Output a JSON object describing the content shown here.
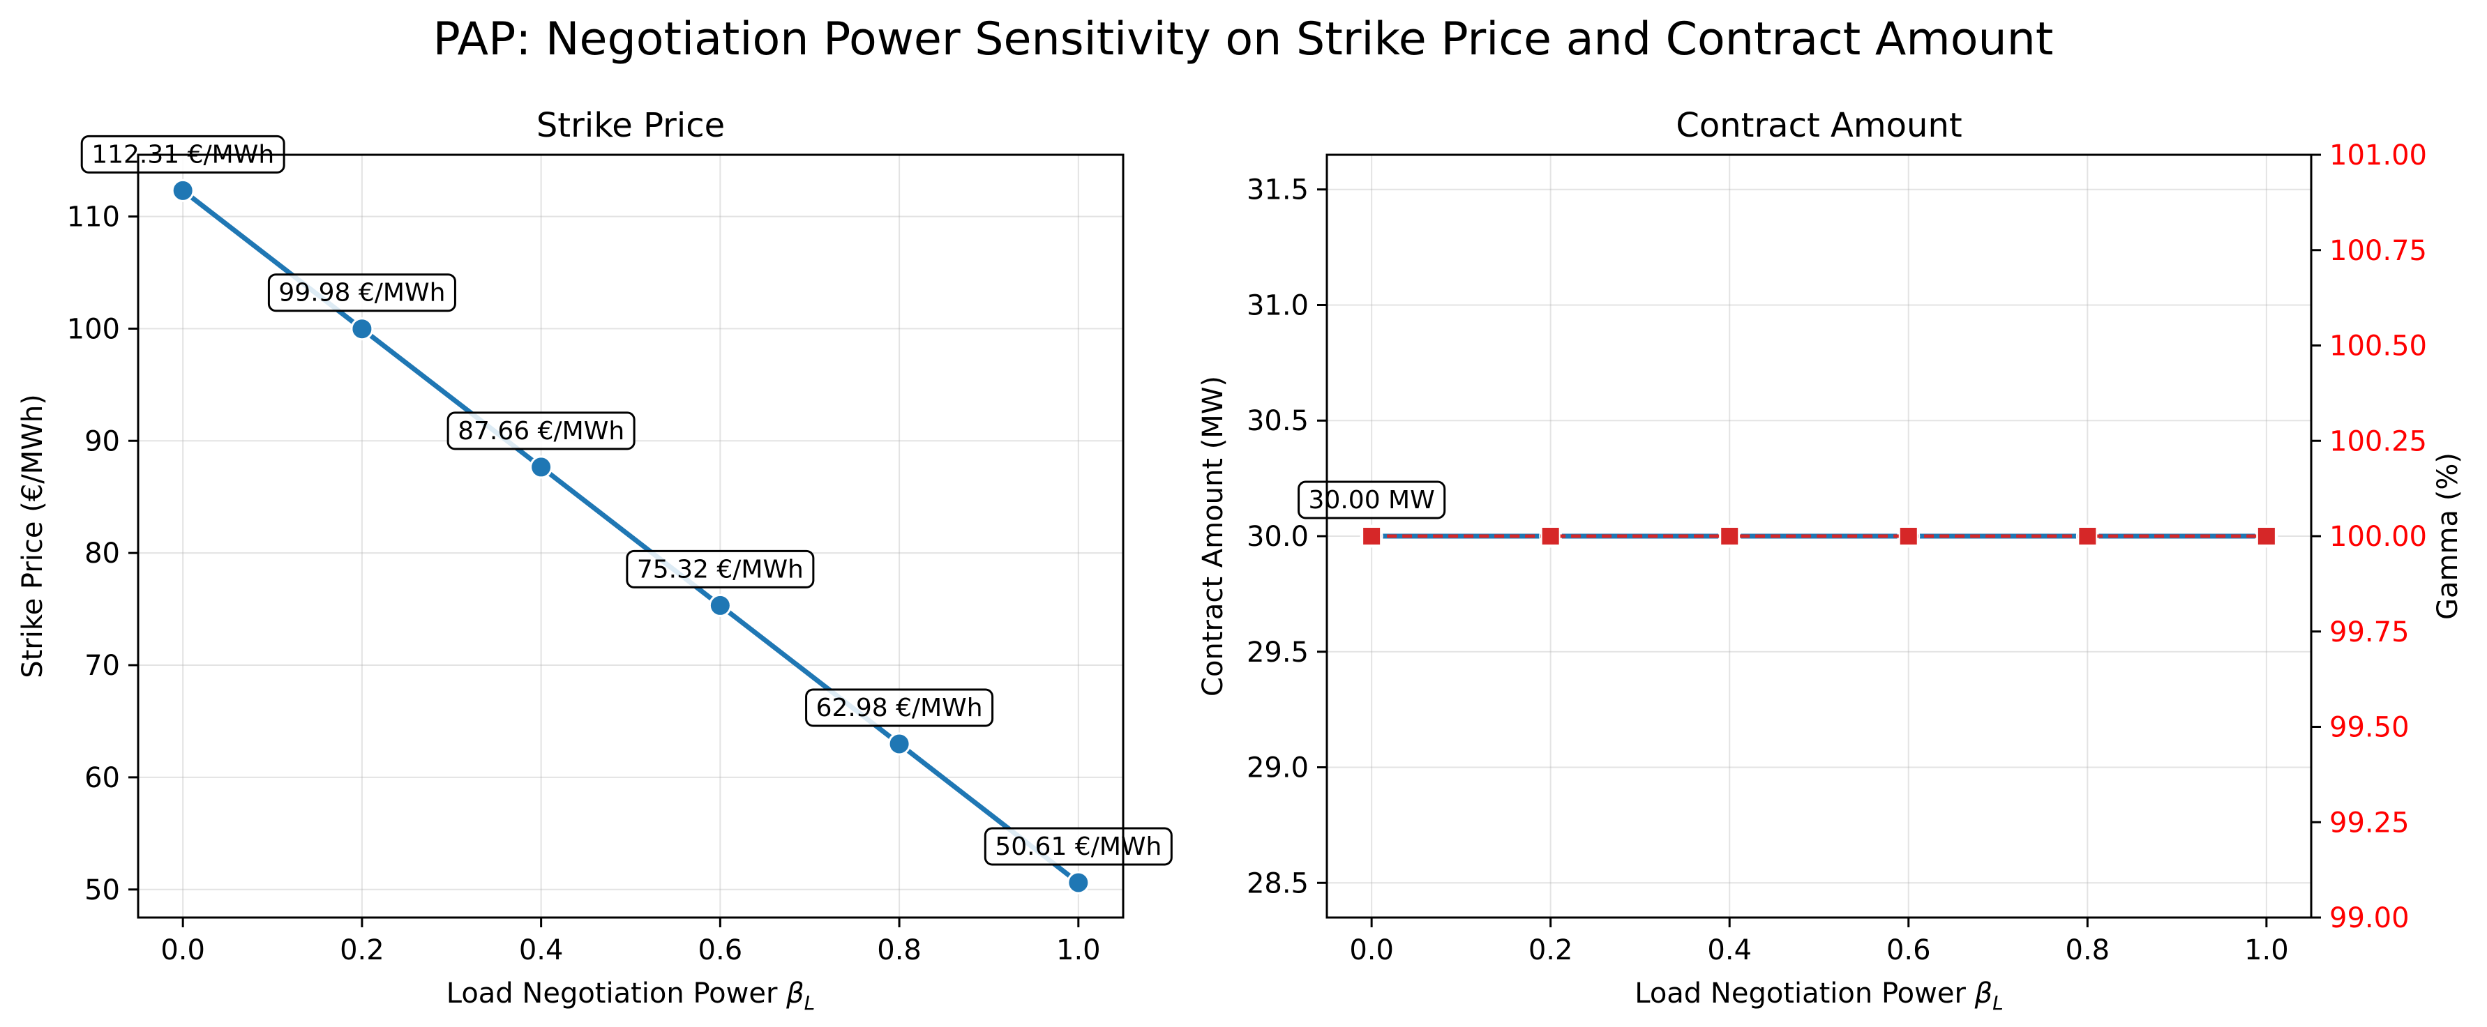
{
  "suptitle": "PAP: Negotiation Power Sensitivity on Strike Price and Contract Amount",
  "chart_data": [
    {
      "type": "line",
      "title": "Strike Price",
      "xlabel": "Load Negotiation Power β_L",
      "xlabel_main": "Load Negotiation Power ",
      "xlabel_symbol": "β",
      "xlabel_sub": "L",
      "ylabel": "Strike Price (€/MWh)",
      "xlim": [
        -0.05,
        1.05
      ],
      "ylim": [
        47.5,
        115.5
      ],
      "xticks": [
        0.0,
        0.2,
        0.4,
        0.6,
        0.8,
        1.0
      ],
      "xtick_labels": [
        "0.0",
        "0.2",
        "0.4",
        "0.6",
        "0.8",
        "1.0"
      ],
      "yticks": [
        50,
        60,
        70,
        80,
        90,
        100,
        110
      ],
      "ytick_labels": [
        "50",
        "60",
        "70",
        "80",
        "90",
        "100",
        "110"
      ],
      "grid": true,
      "series": [
        {
          "x": [
            0.0,
            0.2,
            0.4,
            0.6,
            0.8,
            1.0
          ],
          "y": [
            112.31,
            99.98,
            87.66,
            75.32,
            62.98,
            50.61
          ],
          "color": "#1f77b4",
          "marker": "circle"
        }
      ],
      "annotations": [
        "112.31 €/MWh",
        "99.98 €/MWh",
        "87.66 €/MWh",
        "75.32 €/MWh",
        "62.98 €/MWh",
        "50.61 €/MWh"
      ]
    },
    {
      "type": "line",
      "title": "Contract Amount",
      "xlabel": "Load Negotiation Power β_L",
      "xlabel_main": "Load Negotiation Power ",
      "xlabel_symbol": "β",
      "xlabel_sub": "L",
      "ylabel": "Contract Amount (MW)",
      "ylabel_right": "Gamma (%)",
      "xlim": [
        -0.05,
        1.05
      ],
      "ylim": [
        28.35,
        31.65
      ],
      "ylim_right": [
        99.0,
        101.0
      ],
      "xticks": [
        0.0,
        0.2,
        0.4,
        0.6,
        0.8,
        1.0
      ],
      "xtick_labels": [
        "0.0",
        "0.2",
        "0.4",
        "0.6",
        "0.8",
        "1.0"
      ],
      "yticks": [
        28.5,
        29.0,
        29.5,
        30.0,
        30.5,
        31.0,
        31.5
      ],
      "ytick_labels": [
        "28.5",
        "29.0",
        "29.5",
        "30.0",
        "30.5",
        "31.0",
        "31.5"
      ],
      "yticks_right": [
        99.0,
        99.25,
        99.5,
        99.75,
        100.0,
        100.25,
        100.5,
        100.75,
        101.0
      ],
      "ytick_labels_right": [
        "99.00",
        "99.25",
        "99.50",
        "99.75",
        "100.00",
        "100.25",
        "100.50",
        "100.75",
        "101.00"
      ],
      "grid": true,
      "series": [
        {
          "x": [
            0.0,
            0.2,
            0.4,
            0.6,
            0.8,
            1.0
          ],
          "y": [
            30.0,
            30.0,
            30.0,
            30.0,
            30.0,
            30.0
          ],
          "color": "#1f77b4",
          "marker": "circle",
          "axis": "left"
        },
        {
          "x": [
            0.0,
            0.2,
            0.4,
            0.6,
            0.8,
            1.0
          ],
          "y": [
            100.0,
            100.0,
            100.0,
            100.0,
            100.0,
            100.0
          ],
          "color": "#d62728",
          "marker": "square",
          "linestyle": "dashed",
          "axis": "right"
        }
      ],
      "annotations": [
        "30.00 MW"
      ]
    }
  ]
}
